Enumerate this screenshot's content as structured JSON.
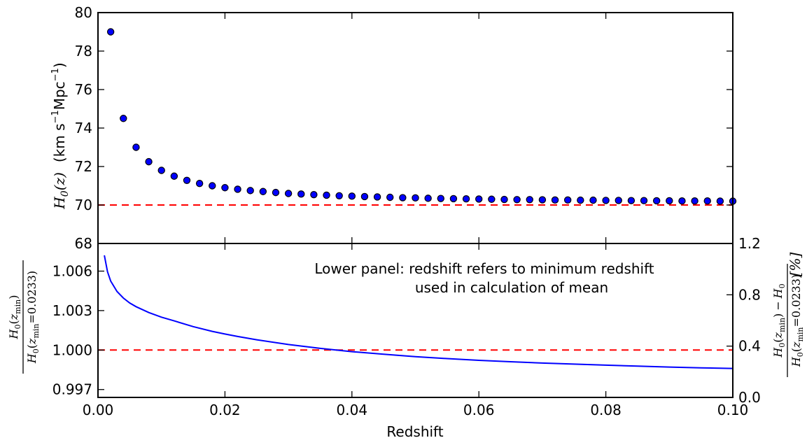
{
  "chart_data": [
    {
      "id": "upper",
      "type": "scatter",
      "xlim": [
        0.0,
        0.1
      ],
      "ylim": [
        68,
        80
      ],
      "yticks": [
        68,
        70,
        72,
        74,
        76,
        78,
        80
      ],
      "ytick_labels": [
        "68",
        "70",
        "72",
        "74",
        "76",
        "78",
        "80"
      ],
      "ylabel_math": "H",
      "ylabel_sub": "0",
      "ylabel_arg": "(z)",
      "ylabel_units_a": "(km s",
      "ylabel_units_exp1": "−1",
      "ylabel_units_b": "Mpc",
      "ylabel_units_exp2": "−1",
      "ylabel_units_c": ")",
      "reference_value": 70,
      "reference_color": "#ff0000",
      "marker_color": "#0000ff",
      "series": [
        {
          "x": [
            0.002,
            0.004,
            0.006,
            0.008,
            0.01,
            0.012,
            0.014,
            0.016,
            0.018,
            0.02,
            0.022,
            0.024,
            0.026,
            0.028,
            0.03,
            0.032,
            0.034,
            0.036,
            0.038,
            0.04,
            0.042,
            0.044,
            0.046,
            0.048,
            0.05,
            0.052,
            0.054,
            0.056,
            0.058,
            0.06,
            0.062,
            0.064,
            0.066,
            0.068,
            0.07,
            0.072,
            0.074,
            0.076,
            0.078,
            0.08,
            0.082,
            0.084,
            0.086,
            0.088,
            0.09,
            0.092,
            0.094,
            0.096,
            0.098,
            0.1
          ],
          "y": [
            79.0,
            74.5,
            73.0,
            72.25,
            71.8,
            71.5,
            71.28,
            71.12,
            71.0,
            70.9,
            70.82,
            70.75,
            70.7,
            70.65,
            70.6,
            70.57,
            70.54,
            70.51,
            70.48,
            70.46,
            70.44,
            70.42,
            70.4,
            70.38,
            70.37,
            70.35,
            70.34,
            70.33,
            70.32,
            70.31,
            70.3,
            70.29,
            70.28,
            70.28,
            70.27,
            70.26,
            70.26,
            70.25,
            70.25,
            70.24,
            70.24,
            70.23,
            70.23,
            70.22,
            70.22,
            70.21,
            70.21,
            70.21,
            70.2,
            70.2
          ]
        }
      ]
    },
    {
      "id": "lower",
      "type": "line",
      "xlim": [
        0.0,
        0.1
      ],
      "ylim": [
        0.9964,
        1.0081
      ],
      "yticks": [
        0.997,
        1.0,
        1.003,
        1.006
      ],
      "ytick_labels": [
        "0.997",
        "1.000",
        "1.003",
        "1.006"
      ],
      "right_ylim": [
        0.0,
        1.2
      ],
      "right_yticks": [
        0.0,
        0.4,
        0.8,
        1.2
      ],
      "right_ytick_labels": [
        "0.0",
        "0.4",
        "0.8",
        "1.2"
      ],
      "xticks": [
        0.0,
        0.02,
        0.04,
        0.06,
        0.08,
        0.1
      ],
      "xtick_labels": [
        "0.00",
        "0.02",
        "0.04",
        "0.06",
        "0.08",
        "0.10"
      ],
      "xlabel": "Redshift",
      "reference_value": 1.0,
      "reference_color": "#ff0000",
      "line_color": "#0000ff",
      "left_label": {
        "num_H": "H",
        "num_sub": "0",
        "num_arg_open": "(",
        "num_z": "z",
        "num_zsub": "min",
        "num_arg_close": ")",
        "den_H": "H",
        "den_sub": "0",
        "den_arg_open": "(",
        "den_z": "z",
        "den_zsub": "min",
        "den_eq": "=0.0233)"
      },
      "right_label": {
        "num_H": "H",
        "num_sub": "0",
        "num_arg_open": "(",
        "num_z": "z",
        "num_zsub": "min",
        "num_arg_close": ")",
        "num_minus": "−",
        "num_H2": "H",
        "num_sub2": "0",
        "den_H": "H",
        "den_sub": "0",
        "den_arg_open": "(",
        "den_z": "z",
        "den_zsub": "min",
        "den_eq": "=0.0233)",
        "unit": "[%]"
      },
      "annotation_line1": "Lower panel: redshift refers to minimum redshift",
      "annotation_line2": "used in calculation of mean",
      "series": [
        {
          "x": [
            0.001,
            0.0015,
            0.002,
            0.003,
            0.004,
            0.005,
            0.006,
            0.008,
            0.01,
            0.012,
            0.015,
            0.018,
            0.02,
            0.022,
            0.025,
            0.03,
            0.035,
            0.04,
            0.045,
            0.05,
            0.055,
            0.06,
            0.065,
            0.07,
            0.075,
            0.08,
            0.085,
            0.09,
            0.095,
            0.1
          ],
          "y": [
            1.0072,
            1.00595,
            1.00525,
            1.00445,
            1.00395,
            1.00358,
            1.0033,
            1.00285,
            1.0025,
            1.00222,
            1.00178,
            1.00142,
            1.00122,
            1.00103,
            1.00078,
            1.00042,
            1.00013,
            0.99988,
            0.99968,
            0.9995,
            0.99935,
            0.99922,
            0.99911,
            0.99901,
            0.99893,
            0.99885,
            0.99878,
            0.99871,
            0.99865,
            0.9986
          ]
        }
      ]
    }
  ]
}
